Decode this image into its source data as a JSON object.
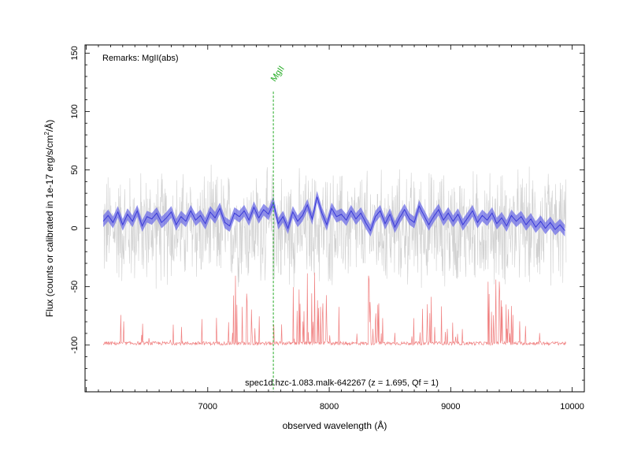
{
  "chart_data": {
    "type": "line",
    "xlabel": "observed wavelength (Å)",
    "ylabel": "Flux (counts or calibrated in 1e-17 erg/s/cm²/Å)",
    "ylabel_parts": [
      "Flux (counts or calibrated in 1e-17 erg/s/cm",
      "2",
      "/Å)"
    ],
    "xlim": [
      5990,
      10100
    ],
    "ylim": [
      -140,
      157
    ],
    "x_ticks": [
      7000,
      8000,
      9000,
      10000
    ],
    "y_ticks": [
      -100,
      -50,
      0,
      50,
      100,
      150
    ],
    "remarks": "Remarks: MgII(abs)",
    "caption": "spec1d.hzc-1.083.malk-642267 (z = 1.695, Qf = 1)",
    "line_marker": {
      "label": "MgII",
      "x": 7540,
      "y_top": 117,
      "y_bottom": -140
    },
    "colors": {
      "raw": "#d0d0d0",
      "smoothed": "#3a3ad8",
      "band": "#6e6ee6",
      "sky": "#f08080",
      "marker": "#22aa22"
    },
    "series": [
      {
        "key": "raw",
        "x_range": [
          6140,
          9950
        ],
        "note_level": 0,
        "typical_scatter": 38
      },
      {
        "key": "smoothed",
        "x": [
          6140,
          6180,
          6220,
          6260,
          6300,
          6340,
          6380,
          6420,
          6460,
          6500,
          6540,
          6580,
          6620,
          6660,
          6700,
          6740,
          6780,
          6820,
          6860,
          6900,
          6940,
          6980,
          7020,
          7060,
          7100,
          7140,
          7180,
          7220,
          7260,
          7300,
          7340,
          7380,
          7420,
          7460,
          7500,
          7540,
          7580,
          7620,
          7660,
          7700,
          7740,
          7780,
          7820,
          7860,
          7900,
          7940,
          7980,
          8020,
          8060,
          8100,
          8140,
          8180,
          8220,
          8260,
          8300,
          8340,
          8380,
          8420,
          8460,
          8500,
          8540,
          8580,
          8620,
          8660,
          8700,
          8740,
          8780,
          8820,
          8860,
          8900,
          8940,
          8980,
          9020,
          9060,
          9100,
          9140,
          9180,
          9220,
          9260,
          9300,
          9340,
          9380,
          9420,
          9460,
          9500,
          9540,
          9580,
          9620,
          9660,
          9700,
          9740,
          9780,
          9820,
          9860,
          9900,
          9940
        ],
        "y": [
          6,
          11,
          5,
          14,
          3,
          12,
          6,
          15,
          2,
          10,
          8,
          13,
          5,
          9,
          14,
          3,
          10,
          6,
          15,
          7,
          11,
          4,
          14,
          9,
          17,
          5,
          2,
          13,
          10,
          15,
          7,
          18,
          9,
          16,
          12,
          22,
          4,
          10,
          0,
          14,
          6,
          11,
          20,
          8,
          27,
          13,
          3,
          17,
          10,
          12,
          7,
          15,
          8,
          13,
          5,
          -2,
          10,
          15,
          4,
          12,
          1,
          9,
          16,
          8,
          5,
          19,
          11,
          3,
          10,
          16,
          7,
          13,
          6,
          12,
          3,
          9,
          15,
          5,
          11,
          7,
          13,
          4,
          9,
          2,
          11,
          6,
          10,
          3,
          8,
          1,
          6,
          0,
          5,
          -1,
          3,
          -2
        ],
        "band_halfwidth": 5
      },
      {
        "key": "sky",
        "baseline": -100,
        "x_range": [
          6140,
          9950
        ]
      }
    ]
  }
}
